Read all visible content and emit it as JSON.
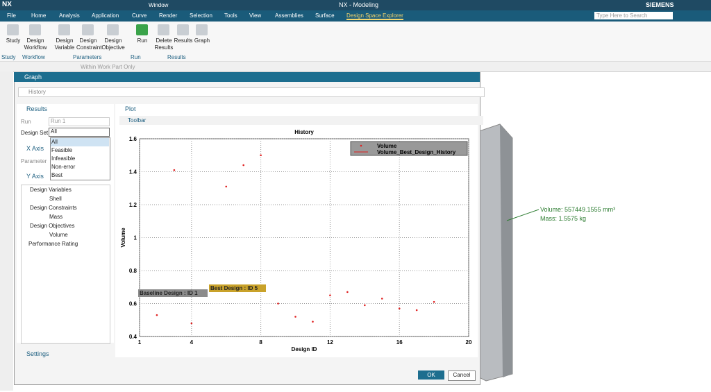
{
  "title_bar": {
    "app": "NX",
    "window_menu": "Window",
    "title": "NX - Modeling",
    "brand": "SIEMENS",
    "search_placeholder": "Type Here to Search"
  },
  "menu": [
    "File",
    "Home",
    "Analysis",
    "Application",
    "Curve",
    "Render",
    "Selection",
    "Tools",
    "View",
    "Assemblies",
    "Surface",
    "Design Space Explorer"
  ],
  "ribbon": {
    "buttons": [
      "Study",
      "Design Workflow",
      "Design Variable",
      "Design Constraint",
      "Design Objective",
      "Run",
      "Delete Results",
      "Results",
      "Graph"
    ],
    "groups": [
      "Study",
      "Workflow",
      "Parameters",
      "Run",
      "Results"
    ]
  },
  "selection_bar": {
    "scope": "Within Work Part Only"
  },
  "dialog": {
    "title": "Graph",
    "graph_type": "History",
    "results": {
      "header": "Results",
      "run_label": "Run",
      "run_value": "Run 1",
      "design_set_label": "Design Set",
      "design_set_value": "All",
      "design_set_options": [
        "All",
        "Feasible",
        "Infeasible",
        "Non-error",
        "Best"
      ]
    },
    "x_axis": {
      "header": "X Axis",
      "parameter_label": "Parameter"
    },
    "y_axis": {
      "header": "Y Axis",
      "tree": [
        {
          "label": "Design Variables",
          "children": [
            "Shell"
          ]
        },
        {
          "label": "Design Constraints",
          "children": [
            "Mass"
          ]
        },
        {
          "label": "Design Objectives",
          "children": [
            "Volume"
          ]
        },
        {
          "label": "Performance Rating",
          "children": []
        }
      ]
    },
    "settings": "Settings",
    "plot": {
      "header": "Plot",
      "toolbar": "Toolbar"
    },
    "buttons": {
      "ok": "OK",
      "cancel": "Cancel"
    }
  },
  "chart_data": {
    "type": "scatter",
    "title": "History",
    "x_label": "Design ID",
    "y_label": "Volume",
    "series": [
      {
        "name": "Volume",
        "color": "#e02020",
        "x": [
          2,
          3,
          4,
          6,
          7,
          8,
          9,
          10,
          11,
          12,
          13,
          14,
          15,
          16,
          17,
          18
        ],
        "values": [
          0.53,
          1.41,
          0.48,
          1.31,
          1.44,
          1.5,
          0.6,
          0.52,
          0.49,
          0.65,
          0.67,
          0.59,
          0.63,
          0.57,
          0.56,
          0.61
        ]
      },
      {
        "name": "Volume_Best_Design_History",
        "color": "#e02020"
      }
    ],
    "xlim": [
      1,
      20
    ],
    "xticks": [
      1,
      4,
      8,
      12,
      16,
      20
    ],
    "ylim": [
      0.4,
      1.6
    ],
    "yticks": [
      0.4,
      0.6,
      0.8,
      1,
      1.2,
      1.4,
      1.6
    ],
    "grid": true,
    "legend": "upper right",
    "annotations": [
      "Baseline Design : ID 1",
      "Best Design : ID 5"
    ]
  },
  "viewport": {
    "annotation": [
      "Volume: 557449.1555 mm³",
      "Mass: 1.5575 kg"
    ]
  }
}
